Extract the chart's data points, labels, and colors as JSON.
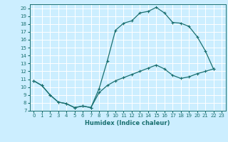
{
  "title": "",
  "xlabel": "Humidex (Indice chaleur)",
  "bg_color": "#cceeff",
  "grid_color": "#ffffff",
  "line_color": "#1a7070",
  "xlim": [
    -0.5,
    23.5
  ],
  "ylim": [
    7,
    20.5
  ],
  "xticks": [
    0,
    1,
    2,
    3,
    4,
    5,
    6,
    7,
    8,
    9,
    10,
    11,
    12,
    13,
    14,
    15,
    16,
    17,
    18,
    19,
    20,
    21,
    22,
    23
  ],
  "yticks": [
    7,
    8,
    9,
    10,
    11,
    12,
    13,
    14,
    15,
    16,
    17,
    18,
    19,
    20
  ],
  "line1_x": [
    0,
    1,
    2,
    3,
    4,
    5,
    6,
    7,
    8,
    9,
    10,
    11,
    12,
    13,
    14,
    15,
    16,
    17,
    18,
    19,
    20,
    21,
    22
  ],
  "line1_y": [
    10.8,
    10.2,
    9.0,
    8.1,
    7.9,
    7.4,
    7.6,
    7.4,
    9.8,
    13.3,
    17.2,
    18.1,
    18.4,
    19.4,
    19.6,
    20.1,
    19.4,
    18.2,
    18.1,
    17.7,
    16.4,
    14.6,
    12.3
  ],
  "line2_x": [
    0,
    1,
    2,
    3,
    4,
    5,
    6,
    7,
    8,
    9,
    10,
    11,
    12,
    13,
    14,
    15,
    16,
    17,
    18,
    19,
    20,
    21,
    22
  ],
  "line2_y": [
    10.8,
    10.2,
    9.0,
    8.1,
    7.9,
    7.4,
    7.6,
    7.4,
    9.3,
    10.2,
    10.8,
    11.2,
    11.6,
    12.0,
    12.4,
    12.8,
    12.3,
    11.5,
    11.1,
    11.3,
    11.7,
    12.0,
    12.3
  ]
}
